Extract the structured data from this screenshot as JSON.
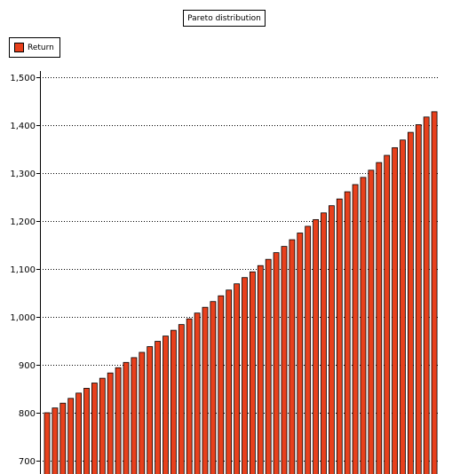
{
  "chart_data": {
    "type": "bar",
    "title": "Pareto distribution",
    "xlabel": "",
    "ylabel": "",
    "ylim": [
      680,
      1500
    ],
    "yticks": [
      700,
      800,
      900,
      1000,
      1100,
      1200,
      1300,
      1400,
      1500
    ],
    "ytick_labels": [
      "700",
      "800",
      "900",
      "1,000",
      "1,100",
      "1,200",
      "1,300",
      "1,400",
      "1,500"
    ],
    "grid": true,
    "legend_position": "top-left",
    "series": [
      {
        "name": "Return",
        "color": "#e8401c",
        "values": [
          800,
          810,
          820,
          830,
          841,
          851,
          862,
          872,
          883,
          894,
          905,
          915,
          926,
          938,
          949,
          960,
          972,
          984,
          996,
          1008,
          1020,
          1032,
          1044,
          1056,
          1069,
          1082,
          1094,
          1107,
          1120,
          1134,
          1147,
          1161,
          1175,
          1189,
          1203,
          1217,
          1232,
          1246,
          1261,
          1276,
          1291,
          1306,
          1322,
          1337,
          1353,
          1369,
          1385,
          1401,
          1417,
          1428
        ]
      }
    ]
  }
}
